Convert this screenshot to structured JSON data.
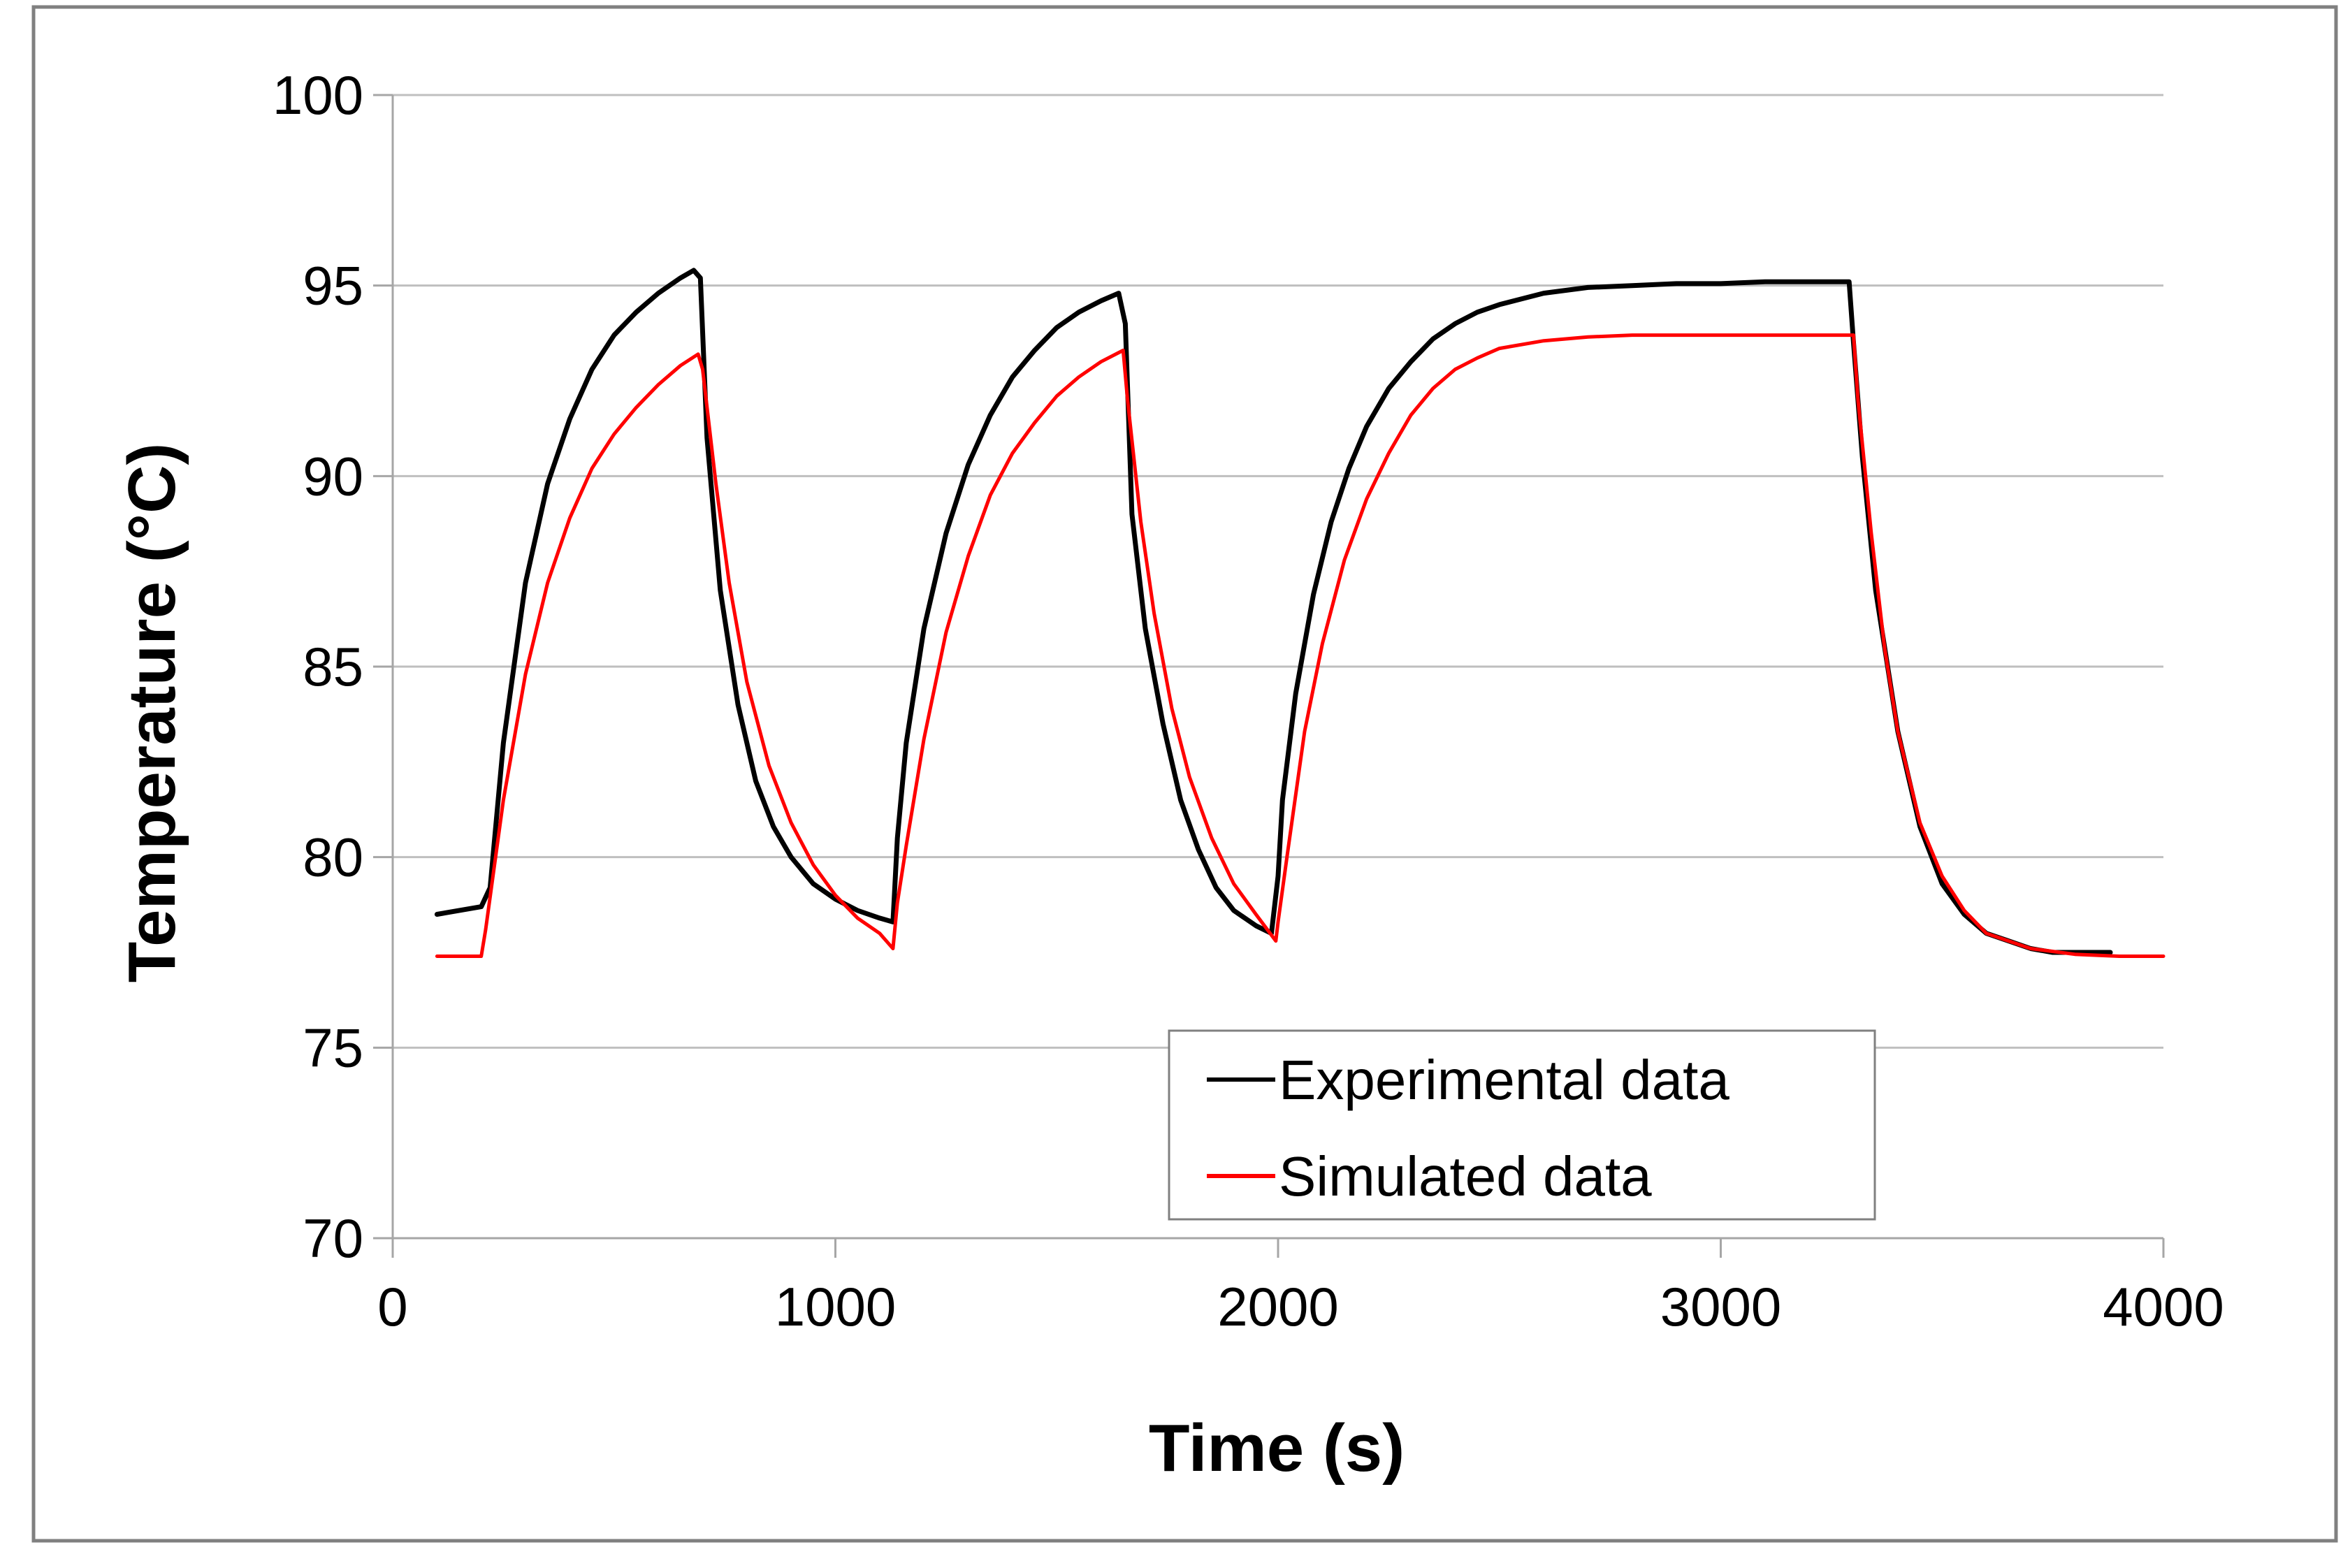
{
  "chart_data": {
    "type": "line",
    "title": "",
    "xlabel": "Time (s)",
    "ylabel": "Temperature (°C)",
    "xlim": [
      0,
      4000
    ],
    "ylim": [
      70,
      100
    ],
    "xticks": [
      "0",
      "1000",
      "2000",
      "3000",
      "4000"
    ],
    "yticks": [
      "70",
      "75",
      "80",
      "85",
      "90",
      "95",
      "100"
    ],
    "grid": "horizontal",
    "legend_position": "bottom-center",
    "colors": {
      "experimental": "#000000",
      "simulated": "#ff0000",
      "grid": "#bfbfbf",
      "frame": "#808080",
      "axis": "#a6a6a6"
    },
    "series": [
      {
        "name": "Experimental data",
        "x": [
          100,
          200,
          220,
          250,
          300,
          350,
          400,
          450,
          500,
          550,
          600,
          650,
          680,
          695,
          710,
          740,
          780,
          820,
          860,
          900,
          950,
          1000,
          1050,
          1100,
          1130,
          1140,
          1160,
          1200,
          1250,
          1300,
          1350,
          1400,
          1450,
          1500,
          1550,
          1600,
          1640,
          1655,
          1670,
          1700,
          1740,
          1780,
          1820,
          1860,
          1900,
          1950,
          1985,
          2000,
          2010,
          2040,
          2080,
          2120,
          2160,
          2200,
          2250,
          2300,
          2350,
          2400,
          2450,
          2500,
          2600,
          2700,
          2800,
          2900,
          3000,
          3100,
          3200,
          3270,
          3290,
          3300,
          3320,
          3350,
          3400,
          3450,
          3500,
          3550,
          3600,
          3650,
          3700,
          3750,
          3800,
          3850,
          3880
        ],
        "y": [
          78.5,
          78.7,
          79.2,
          83.0,
          87.2,
          89.8,
          91.5,
          92.8,
          93.7,
          94.3,
          94.8,
          95.2,
          95.4,
          95.2,
          91.0,
          87.0,
          84.0,
          82.0,
          80.8,
          80.0,
          79.3,
          78.9,
          78.6,
          78.4,
          78.3,
          80.5,
          83.0,
          86.0,
          88.5,
          90.3,
          91.6,
          92.6,
          93.3,
          93.9,
          94.3,
          94.6,
          94.8,
          94.0,
          89.0,
          86.0,
          83.5,
          81.5,
          80.2,
          79.2,
          78.6,
          78.2,
          78.0,
          79.5,
          81.5,
          84.3,
          86.9,
          88.8,
          90.2,
          91.3,
          92.3,
          93.0,
          93.6,
          94.0,
          94.3,
          94.5,
          94.8,
          94.95,
          95.0,
          95.05,
          95.05,
          95.1,
          95.1,
          95.1,
          95.1,
          93.5,
          90.5,
          87.0,
          83.3,
          80.8,
          79.3,
          78.5,
          78.0,
          77.8,
          77.6,
          77.5,
          77.5,
          77.5,
          77.5
        ]
      },
      {
        "name": "Simulated data",
        "x": [
          100,
          200,
          210,
          250,
          300,
          350,
          400,
          450,
          500,
          550,
          600,
          650,
          690,
          700,
          730,
          760,
          800,
          850,
          900,
          950,
          1000,
          1050,
          1100,
          1130,
          1140,
          1160,
          1200,
          1250,
          1300,
          1350,
          1400,
          1450,
          1500,
          1550,
          1600,
          1650,
          1660,
          1690,
          1720,
          1760,
          1800,
          1850,
          1900,
          1950,
          1995,
          2000,
          2020,
          2060,
          2100,
          2150,
          2200,
          2250,
          2300,
          2350,
          2400,
          2450,
          2500,
          2600,
          2700,
          2800,
          2900,
          3000,
          3100,
          3200,
          3300,
          3310,
          3340,
          3370,
          3400,
          3450,
          3500,
          3550,
          3600,
          3650,
          3700,
          3800,
          3900,
          4000
        ],
        "y": [
          77.4,
          77.4,
          78.1,
          81.5,
          84.8,
          87.2,
          88.9,
          90.2,
          91.1,
          91.8,
          92.4,
          92.9,
          93.2,
          92.8,
          89.8,
          87.2,
          84.6,
          82.4,
          80.9,
          79.8,
          79.0,
          78.4,
          78.0,
          77.6,
          78.8,
          80.3,
          83.1,
          85.9,
          87.9,
          89.5,
          90.6,
          91.4,
          92.1,
          92.6,
          93.0,
          93.3,
          92.0,
          88.8,
          86.4,
          83.9,
          82.1,
          80.5,
          79.3,
          78.5,
          77.8,
          78.3,
          80.0,
          83.3,
          85.6,
          87.8,
          89.4,
          90.6,
          91.6,
          92.3,
          92.8,
          93.1,
          93.35,
          93.55,
          93.65,
          93.7,
          93.7,
          93.7,
          93.7,
          93.7,
          93.7,
          92.0,
          88.5,
          85.5,
          83.3,
          80.9,
          79.5,
          78.6,
          78.0,
          77.8,
          77.6,
          77.45,
          77.4,
          77.4
        ]
      }
    ]
  }
}
